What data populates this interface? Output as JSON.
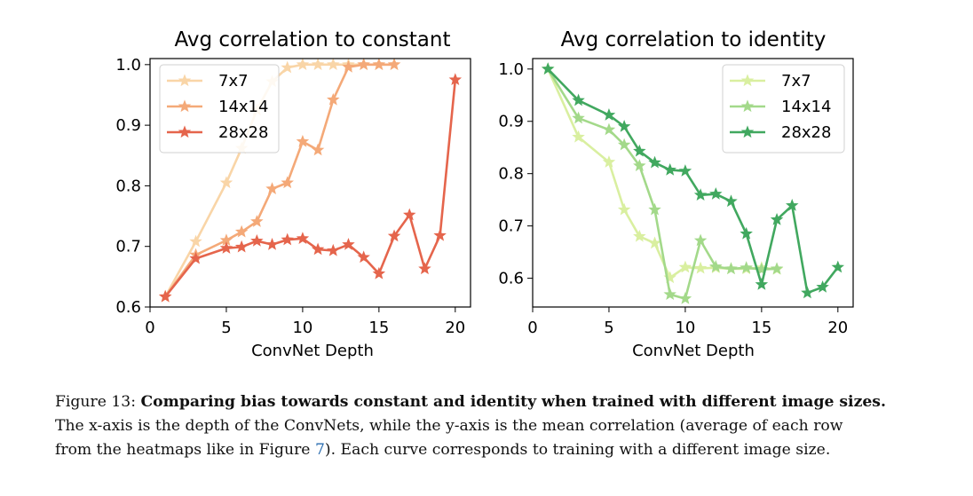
{
  "charts": [
    {
      "title": "Avg correlation to constant",
      "xlabel": "ConvNet Depth",
      "xticks": [
        "0",
        "5",
        "10",
        "15",
        "20"
      ],
      "yticks": [
        "0.6",
        "0.7",
        "0.8",
        "0.9",
        "1.0"
      ]
    },
    {
      "title": "Avg correlation to identity",
      "xlabel": "ConvNet Depth",
      "xticks": [
        "0",
        "5",
        "10",
        "15",
        "20"
      ],
      "yticks": [
        "0.6",
        "0.7",
        "0.8",
        "0.9",
        "1.0"
      ]
    }
  ],
  "chart_data": [
    {
      "type": "line",
      "title": "Avg correlation to constant",
      "xlabel": "ConvNet Depth",
      "ylabel": "",
      "xlim": [
        0,
        21
      ],
      "ylim": [
        0.6,
        1.01
      ],
      "legend": "top-left",
      "grid": false,
      "series": [
        {
          "name": "7x7",
          "color": "#f9d5a7",
          "x": [
            1,
            3,
            5,
            6,
            7,
            8,
            9,
            10,
            11,
            12,
            13,
            14,
            15,
            16
          ],
          "y": [
            0.617,
            0.708,
            0.805,
            0.862,
            0.925,
            0.972,
            0.995,
            1.0,
            1.0,
            1.0,
            1.0,
            1.0,
            1.0,
            1.0
          ]
        },
        {
          "name": "14x14",
          "color": "#f4a978",
          "x": [
            1,
            3,
            5,
            6,
            7,
            8,
            9,
            10,
            11,
            12,
            13,
            14,
            15,
            16
          ],
          "y": [
            0.617,
            0.686,
            0.71,
            0.724,
            0.741,
            0.795,
            0.805,
            0.873,
            0.859,
            0.942,
            0.996,
            1.0,
            1.0,
            1.0
          ]
        },
        {
          "name": "28x28",
          "color": "#e5654c",
          "x": [
            1,
            3,
            5,
            6,
            7,
            8,
            9,
            10,
            11,
            12,
            13,
            14,
            15,
            16,
            17,
            18,
            19,
            20
          ],
          "y": [
            0.617,
            0.68,
            0.697,
            0.699,
            0.709,
            0.703,
            0.711,
            0.713,
            0.695,
            0.693,
            0.703,
            0.682,
            0.655,
            0.717,
            0.752,
            0.663,
            0.718,
            0.975
          ]
        }
      ]
    },
    {
      "type": "line",
      "title": "Avg correlation to identity",
      "xlabel": "ConvNet Depth",
      "ylabel": "",
      "xlim": [
        0,
        21
      ],
      "ylim": [
        0.545,
        1.02
      ],
      "legend": "top-right",
      "grid": false,
      "series": [
        {
          "name": "7x7",
          "color": "#d9efa0",
          "x": [
            1,
            3,
            5,
            6,
            7,
            8,
            9,
            10,
            11,
            12,
            13,
            14,
            15,
            16
          ],
          "y": [
            1.0,
            0.87,
            0.822,
            0.731,
            0.68,
            0.667,
            0.601,
            0.621,
            0.619,
            0.62,
            0.618,
            0.618,
            0.62,
            0.617
          ]
        },
        {
          "name": "14x14",
          "color": "#a3d98a",
          "x": [
            1,
            3,
            5,
            6,
            7,
            8,
            9,
            10,
            11,
            12,
            13,
            14,
            15,
            16
          ],
          "y": [
            1.0,
            0.906,
            0.884,
            0.855,
            0.815,
            0.731,
            0.569,
            0.561,
            0.672,
            0.622,
            0.618,
            0.62,
            0.617,
            0.618
          ]
        },
        {
          "name": "28x28",
          "color": "#41a85f",
          "x": [
            1,
            3,
            5,
            6,
            7,
            8,
            9,
            10,
            11,
            12,
            13,
            14,
            15,
            16,
            17,
            18,
            19,
            20
          ],
          "y": [
            1.0,
            0.94,
            0.912,
            0.89,
            0.843,
            0.821,
            0.807,
            0.805,
            0.759,
            0.761,
            0.747,
            0.685,
            0.588,
            0.712,
            0.739,
            0.572,
            0.583,
            0.621
          ]
        }
      ]
    }
  ],
  "caption": {
    "figure_label": "Figure 13: ",
    "bold_text": "Comparing bias towards constant and identity when trained with different image sizes.",
    "line2": "The x-axis is the depth of the ConvNets, while the y-axis is the mean correlation (average of each row",
    "line3_prefix": "from the heatmaps like in Figure ",
    "figure_ref": "7",
    "line3_suffix": "). Each curve corresponds to training with a different image size."
  }
}
